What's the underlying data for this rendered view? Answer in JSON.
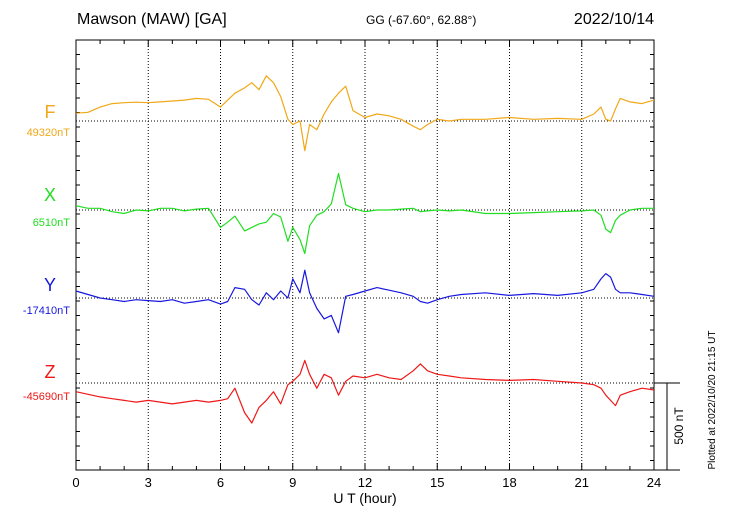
{
  "header": {
    "station": "Mawson (MAW)  [GA]",
    "coords": "GG (-67.60°,  62.88°)",
    "date": "2022/10/14"
  },
  "footer": {
    "xlabel": "U T (hour)",
    "plotted": "Plotted at 2022/10/20 21:15 UT",
    "scale_label": "500 nT"
  },
  "chart_data": {
    "type": "line",
    "title": "Mawson (MAW)  [GA]",
    "xlabel": "U T (hour)",
    "ylabel": "",
    "xlim": [
      0,
      24
    ],
    "xticks": [
      0,
      3,
      6,
      9,
      12,
      15,
      18,
      21,
      24
    ],
    "grid": true,
    "scale_bar_nT": 500,
    "series": [
      {
        "name": "F",
        "baseline_label": "49320nT",
        "baseline": 49320,
        "color": "#f0a818",
        "x": [
          0,
          0.5,
          1,
          1.5,
          2,
          2.5,
          3,
          3.5,
          4,
          4.5,
          5,
          5.5,
          6,
          6.3,
          6.6,
          7,
          7.3,
          7.6,
          7.9,
          8.2,
          8.5,
          8.8,
          9,
          9.3,
          9.5,
          9.7,
          10,
          10.3,
          10.6,
          10.9,
          11.2,
          11.5,
          12,
          12.5,
          13,
          13.5,
          14,
          14.3,
          14.6,
          15,
          15.5,
          16,
          17,
          18,
          19,
          20,
          21,
          21.5,
          21.8,
          22,
          22.2,
          22.4,
          22.6,
          23,
          23.5,
          24
        ],
        "y": [
          49365,
          49370,
          49400,
          49420,
          49425,
          49428,
          49425,
          49430,
          49435,
          49440,
          49450,
          49445,
          49400,
          49440,
          49480,
          49510,
          49540,
          49500,
          49580,
          49540,
          49460,
          49330,
          49300,
          49320,
          49150,
          49300,
          49270,
          49360,
          49430,
          49480,
          49520,
          49380,
          49340,
          49360,
          49350,
          49330,
          49290,
          49270,
          49300,
          49330,
          49320,
          49330,
          49330,
          49340,
          49330,
          49335,
          49330,
          49360,
          49400,
          49330,
          49320,
          49390,
          49450,
          49430,
          49420,
          49440
        ]
      },
      {
        "name": "X",
        "baseline_label": "6510nT",
        "baseline": 6510,
        "color": "#22dd22",
        "x": [
          0,
          0.5,
          1,
          1.5,
          2,
          2.5,
          3,
          3.5,
          4,
          4.5,
          5,
          5.5,
          6,
          6.3,
          6.6,
          7,
          7.3,
          7.6,
          7.9,
          8.2,
          8.5,
          8.8,
          9,
          9.3,
          9.5,
          9.7,
          10,
          10.3,
          10.6,
          10.9,
          11.2,
          11.5,
          12,
          12.5,
          13,
          13.5,
          14,
          14.3,
          14.6,
          15,
          15.5,
          16,
          17,
          18,
          19,
          20,
          21,
          21.5,
          21.8,
          22,
          22.2,
          22.4,
          22.6,
          23,
          23.5,
          24
        ],
        "y": [
          6535,
          6520,
          6520,
          6500,
          6490,
          6510,
          6505,
          6520,
          6520,
          6505,
          6515,
          6520,
          6410,
          6440,
          6475,
          6390,
          6410,
          6430,
          6440,
          6490,
          6470,
          6330,
          6410,
          6340,
          6260,
          6420,
          6480,
          6500,
          6545,
          6720,
          6540,
          6520,
          6500,
          6510,
          6510,
          6515,
          6520,
          6500,
          6505,
          6510,
          6505,
          6510,
          6490,
          6490,
          6495,
          6500,
          6505,
          6510,
          6480,
          6400,
          6380,
          6450,
          6480,
          6510,
          6520,
          6520
        ]
      },
      {
        "name": "Y",
        "baseline_label": "-17410nT",
        "baseline": -17410,
        "color": "#1818dd",
        "x": [
          0,
          0.5,
          1,
          1.5,
          2,
          2.5,
          3,
          3.5,
          4,
          4.5,
          5,
          5.5,
          6,
          6.3,
          6.6,
          7,
          7.3,
          7.6,
          7.9,
          8.2,
          8.5,
          8.8,
          9,
          9.3,
          9.5,
          9.7,
          10,
          10.3,
          10.6,
          10.9,
          11.2,
          11.5,
          12,
          12.5,
          13,
          13.5,
          14,
          14.3,
          14.6,
          15,
          15.5,
          16,
          17,
          18,
          19,
          20,
          21,
          21.5,
          21.8,
          22,
          22.2,
          22.4,
          22.6,
          23,
          23.5,
          24
        ],
        "y": [
          -17370,
          -17390,
          -17410,
          -17420,
          -17430,
          -17420,
          -17425,
          -17430,
          -17420,
          -17440,
          -17430,
          -17420,
          -17445,
          -17430,
          -17350,
          -17360,
          -17420,
          -17450,
          -17380,
          -17420,
          -17370,
          -17410,
          -17300,
          -17380,
          -17250,
          -17380,
          -17470,
          -17530,
          -17510,
          -17610,
          -17400,
          -17390,
          -17370,
          -17350,
          -17365,
          -17380,
          -17400,
          -17430,
          -17440,
          -17420,
          -17400,
          -17390,
          -17380,
          -17395,
          -17385,
          -17395,
          -17380,
          -17360,
          -17300,
          -17270,
          -17290,
          -17360,
          -17380,
          -17380,
          -17390,
          -17400
        ]
      },
      {
        "name": "Z",
        "baseline_label": "-45690nT",
        "baseline": -45690,
        "color": "#ee1818",
        "x": [
          0,
          0.5,
          1,
          1.5,
          2,
          2.5,
          3,
          3.5,
          4,
          4.5,
          5,
          5.5,
          6,
          6.3,
          6.6,
          7,
          7.3,
          7.6,
          7.9,
          8.2,
          8.5,
          8.8,
          9,
          9.3,
          9.5,
          9.7,
          10,
          10.3,
          10.6,
          10.9,
          11.2,
          11.5,
          12,
          12.5,
          13,
          13.5,
          14,
          14.3,
          14.6,
          15,
          15.5,
          16,
          17,
          18,
          19,
          20,
          21,
          21.5,
          21.8,
          22,
          22.2,
          22.4,
          22.6,
          23,
          23.5,
          24
        ],
        "y": [
          -45740,
          -45755,
          -45770,
          -45780,
          -45790,
          -45800,
          -45790,
          -45800,
          -45810,
          -45800,
          -45790,
          -45800,
          -45790,
          -45780,
          -45720,
          -45860,
          -45920,
          -45830,
          -45790,
          -45740,
          -45810,
          -45700,
          -45680,
          -45640,
          -45560,
          -45640,
          -45720,
          -45640,
          -45660,
          -45760,
          -45680,
          -45650,
          -45660,
          -45640,
          -45660,
          -45670,
          -45620,
          -45580,
          -45620,
          -45640,
          -45650,
          -45660,
          -45670,
          -45675,
          -45670,
          -45680,
          -45690,
          -45700,
          -45720,
          -45760,
          -45790,
          -45820,
          -45760,
          -45740,
          -45720,
          -45730
        ]
      }
    ]
  }
}
